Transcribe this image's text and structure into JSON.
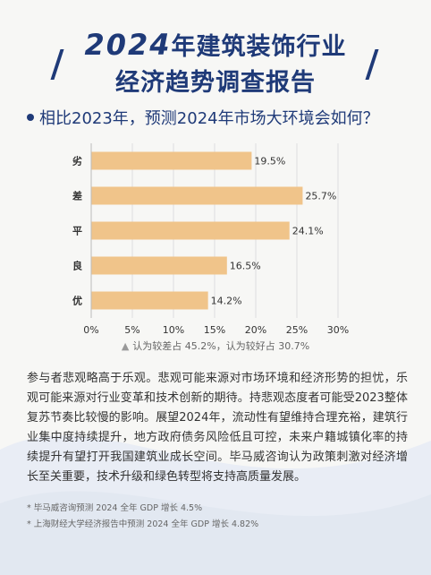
{
  "title": {
    "year": "2024",
    "line1_rest": "年建筑装饰行业",
    "line2": "经济趋势调查报告"
  },
  "question": "相比2023年，预测2024年市场大环境会如何？",
  "chart_data": {
    "type": "bar",
    "orientation": "horizontal",
    "categories": [
      "劣",
      "差",
      "平",
      "良",
      "优"
    ],
    "values": [
      19.5,
      25.7,
      24.1,
      16.5,
      14.2
    ],
    "data_labels": [
      "19.5%",
      "25.7%",
      "24.1%",
      "16.5%",
      "14.2%"
    ],
    "xlim": [
      0,
      30
    ],
    "x_ticks": [
      "0%",
      "5%",
      "10%",
      "15%",
      "20%",
      "25%",
      "30%"
    ],
    "grid": true,
    "bar_color": "#f0c48a"
  },
  "note": "认为较差占 45.2%，认为较好占 30.7%",
  "body": "参与者悲观略高于乐观。悲观可能来源对市场环境和经济形势的担忧，乐观可能来源对行业变革和技术创新的期待。持悲观态度者可能受2023整体复苏节奏比较慢的影响。展望2024年，流动性有望维持合理充裕，建筑行业集中度持续提升，地方政府债务风险低且可控，未来户籍城镇化率的持续提升有望打开我国建筑业成长空间。毕马威咨询认为政策刺激对经济增长至关重要，技术升级和绿色转型将支持高质量发展。",
  "footnotes": [
    "毕马威咨询预测 2024 全年 GDP 增长 4.5%",
    "上海财经大学经济报告中预测 2024 全年 GDP 增长 4.82%"
  ],
  "colors": {
    "title": "#1f3a78",
    "bar": "#f0c48a",
    "background": "#f7f7f5"
  }
}
